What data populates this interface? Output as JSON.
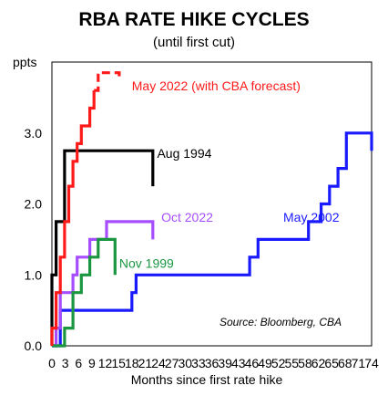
{
  "chart_data": {
    "type": "line",
    "title": "RBA RATE HIKE CYCLES",
    "subtitle": "(until first cut)",
    "ylabel": "ppts",
    "xlabel": "Months since first rate hike",
    "source": "Source: Bloomberg, CBA",
    "xlim": [
      0,
      76
    ],
    "ylim": [
      0,
      4.0
    ],
    "x_ticks": [
      "0",
      "3",
      "6",
      "9",
      "12",
      "15",
      "18",
      "21",
      "24",
      "27",
      "30",
      "33",
      "36",
      "39",
      "43",
      "46",
      "49",
      "52",
      "55",
      "58",
      "62",
      "65",
      "68",
      "71",
      "74"
    ],
    "y_ticks": [
      "0.0",
      "1.0",
      "2.0",
      "3.0"
    ],
    "y_tick_values": [
      0,
      1.0,
      2.0,
      3.0
    ],
    "grid": false,
    "series": [
      {
        "name": "May 2002",
        "color": "#1a1aff",
        "label_xy": [
          55,
          1.75
        ],
        "x": [
          0,
          2,
          2,
          19,
          19,
          20,
          20,
          47,
          47,
          49,
          49,
          61,
          61,
          64,
          64,
          66,
          66,
          68,
          68,
          70,
          70,
          76,
          76
        ],
        "y": [
          0,
          0,
          0.5,
          0.5,
          0.75,
          0.75,
          1.0,
          1.0,
          1.25,
          1.25,
          1.5,
          1.5,
          1.75,
          1.75,
          2.0,
          2.0,
          2.25,
          2.25,
          2.5,
          2.5,
          3.0,
          3.0,
          2.75
        ]
      },
      {
        "name": "Aug 1994",
        "color": "#000000",
        "label_xy": [
          25,
          2.65
        ],
        "x": [
          0,
          0,
          1,
          1,
          3,
          3,
          24,
          24
        ],
        "y": [
          0,
          1.0,
          1.0,
          1.75,
          1.75,
          2.75,
          2.75,
          2.25
        ]
      },
      {
        "name": "Oct 2022",
        "color": "#a64dff",
        "label_xy": [
          26,
          1.75
        ],
        "x": [
          0,
          1,
          1,
          2,
          2,
          5,
          5,
          6,
          6,
          9,
          9,
          13,
          13,
          16,
          16,
          24,
          24
        ],
        "y": [
          0,
          0,
          0.25,
          0.25,
          0.75,
          0.75,
          1.0,
          1.0,
          1.25,
          1.25,
          1.5,
          1.5,
          1.75,
          1.75,
          1.75,
          1.75,
          1.5
        ]
      },
      {
        "name": "Nov 1999",
        "color": "#1a9641",
        "label_xy": [
          16,
          1.1
        ],
        "x": [
          0,
          3,
          3,
          5,
          5,
          7,
          7,
          9,
          9,
          11,
          11,
          14,
          14,
          15,
          15
        ],
        "y": [
          0,
          0,
          0.25,
          0.25,
          0.75,
          0.75,
          1.0,
          1.0,
          1.25,
          1.25,
          1.5,
          1.5,
          1.5,
          1.5,
          1.0
        ]
      },
      {
        "name": "May 2022 (with CBA forecast)",
        "color": "#ff1a1a",
        "label_xy": [
          19,
          3.6
        ],
        "x": [
          0,
          0,
          1,
          1,
          2,
          2,
          3,
          3,
          4,
          4,
          5,
          5,
          6,
          6,
          7,
          7,
          9,
          9,
          10,
          10
        ],
        "y": [
          0,
          0.25,
          0.25,
          0.75,
          0.75,
          1.25,
          1.25,
          1.75,
          1.75,
          2.25,
          2.25,
          2.6,
          2.6,
          2.85,
          2.85,
          3.1,
          3.1,
          3.35,
          3.35,
          3.6
        ],
        "forecast": {
          "x": [
            10,
            11,
            11,
            12,
            12,
            13,
            13,
            16,
            16
          ],
          "y": [
            3.6,
            3.6,
            3.85,
            3.85,
            3.85,
            3.85,
            3.85,
            3.85,
            3.75
          ]
        }
      }
    ]
  }
}
